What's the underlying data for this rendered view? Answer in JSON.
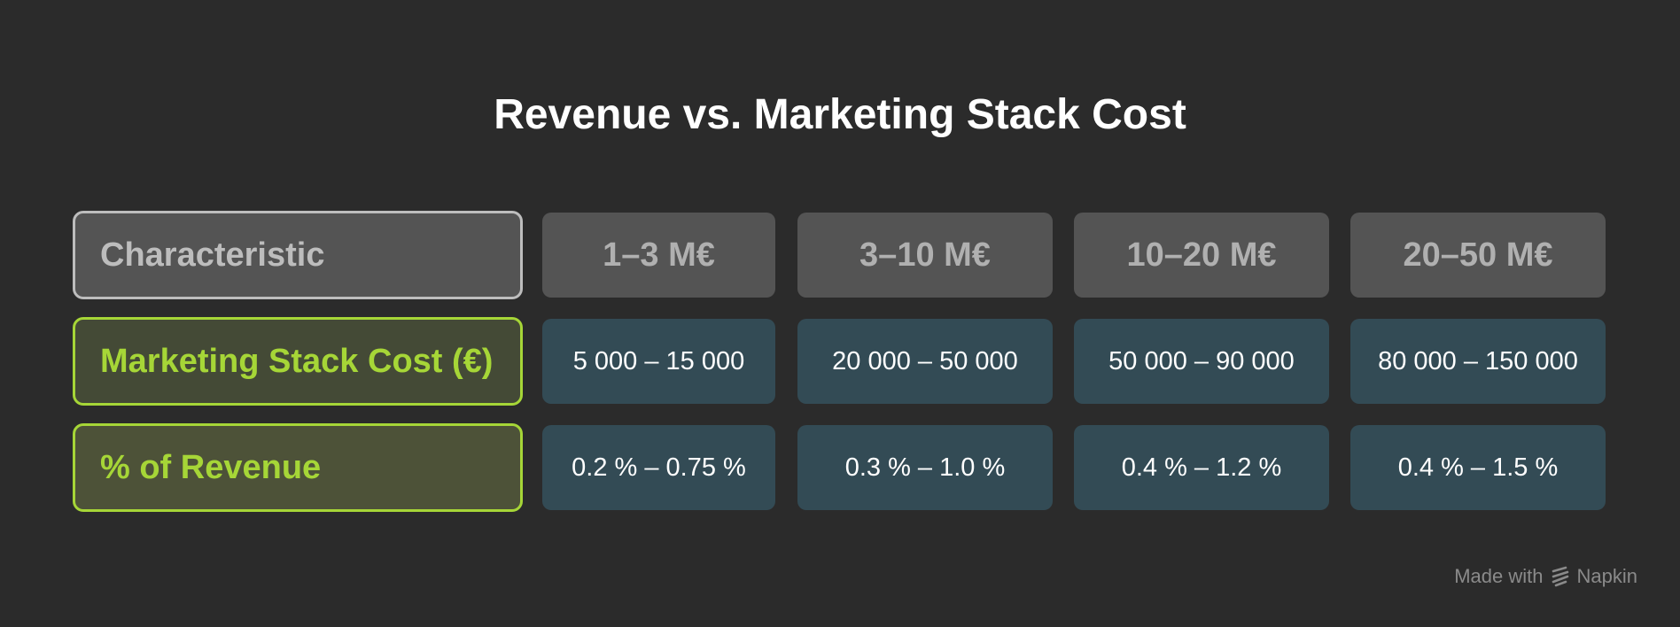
{
  "title": "Revenue vs. Marketing Stack Cost",
  "table": {
    "header_label": "Characteristic",
    "columns": [
      "1–3 M€",
      "3–10 M€",
      "10–20 M€",
      "20–50 M€"
    ],
    "rows": [
      {
        "label": "Marketing Stack Cost (€)",
        "values": [
          "5 000 – 15 000",
          "20 000 – 50 000",
          "50 000 – 90 000",
          "80 000 – 150 000"
        ]
      },
      {
        "label": "% of Revenue",
        "values": [
          "0.2 % – 0.75 %",
          "0.3 % – 1.0 %",
          "0.4 % – 1.2 %",
          "0.4 % – 1.5 %"
        ]
      }
    ]
  },
  "watermark": {
    "made_with": "Made with",
    "brand": "Napkin",
    "icon": "napkin-logo-icon"
  },
  "colors": {
    "background": "#2b2b2b",
    "header_fill": "#545454",
    "header_text": "#bdbdbd",
    "accent_green": "#a6d637",
    "value_fill": "#334b55",
    "value_text": "#ffffff"
  }
}
